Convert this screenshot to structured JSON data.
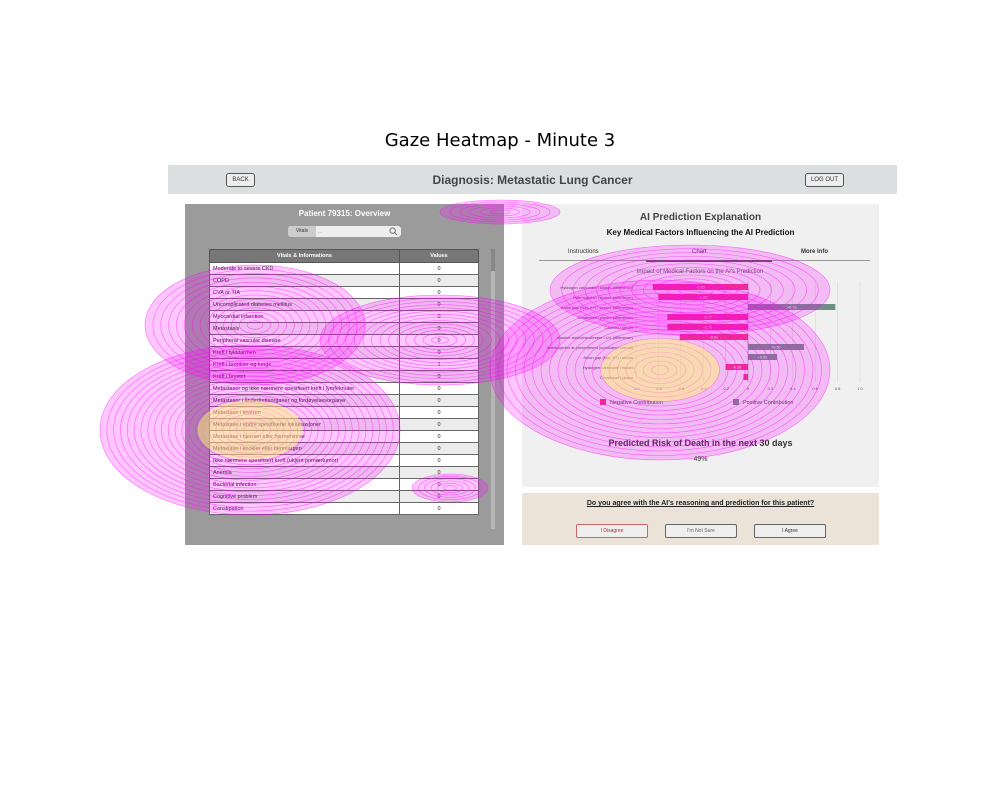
{
  "figure_title": "Gaze Heatmap - Minute 3",
  "header": {
    "back_label": "BACK",
    "title": "Diagnosis: Metastatic Lung Cancer",
    "logout_label": "LOG OUT"
  },
  "left_panel": {
    "title": "Patient 79315: Overview",
    "search_tab": "Vitals",
    "search_placeholder": "...",
    "table": {
      "headers": [
        "Vitals & Informations",
        "Values"
      ],
      "rows": [
        [
          "Moderate to severe CKD",
          "0"
        ],
        [
          "COPD",
          "0"
        ],
        [
          "CVA or TIA",
          "0"
        ],
        [
          "Uncomplicated diabetes mellitus",
          "0"
        ],
        [
          "Myocardial infarction",
          "0"
        ],
        [
          "Metastasis",
          "0"
        ],
        [
          "Peripheral vascular disease",
          "0"
        ],
        [
          "Kreft i tykktarmen",
          "0"
        ],
        [
          "Kreft i bronkier og lunge",
          "1"
        ],
        [
          "Kreft i brystet",
          "0"
        ],
        [
          "Metastaser og ikke nærmere spesifisert kreft i lymfeknuter",
          "0"
        ],
        [
          "Metastaser i åndedrettsorganer og fordøyelsesorganer",
          "0"
        ],
        [
          "Metastase i leveren",
          "0"
        ],
        [
          "Metastase i andre spesifiserte lokalisasjoner",
          "0"
        ],
        [
          "Metastase i hjernen eller hjernehinner",
          "0"
        ],
        [
          "Metastase i knokler eller benmargen",
          "0"
        ],
        [
          "Ikke nærmere spesifisert kreft (ukjent primærtumor)",
          "0"
        ],
        [
          "Anemia",
          "0"
        ],
        [
          "Bacterial infection",
          "0"
        ],
        [
          "Cognitive problem",
          "0"
        ],
        [
          "Constipation",
          "0"
        ]
      ]
    }
  },
  "right_panel": {
    "title": "AI Prediction Explanation",
    "subtitle": "Key Medical Factors Influencing the AI Prediction",
    "tabs": [
      "Instructions",
      "Chart",
      "More Info"
    ],
    "risk_title": "Predicted Risk of Death in the next 30 days",
    "risk_value": "49%"
  },
  "chart_data": {
    "type": "bar",
    "orientation": "horizontal",
    "title": "Impact of Medical Factors on the AI's Prediction",
    "categories": [
      "Hydrogen carbonate i blodet, (difference)",
      "Haemoglobin i blodet, (difference)",
      "Anion gap (Na), K+) i serum, (difference)",
      "Creatinium i plasm, (difference)",
      "Calcium i serum",
      "Alanine aminotransferase i U/L (difference)",
      "Haemoglobin at presentment (cumulated overall)",
      "Anion gap (Na), K+) i serum",
      "Hydrogen carbonate i blodet",
      "Creatinium i plasm"
    ],
    "values": [
      -0.85,
      -0.8,
      0.78,
      -0.72,
      -0.72,
      -0.61,
      0.5,
      0.26,
      -0.2,
      -0.04
    ],
    "value_labels": [
      "-0.85",
      "-0.80",
      "+0.78",
      "-0.72",
      "-0.72",
      "-0.61",
      "+0.50",
      "+0.26",
      "-0.20",
      ""
    ],
    "xlim": [
      -1.0,
      1.0
    ],
    "xticks": [
      "-1.0",
      "-0.8",
      "-0.6",
      "-0.4",
      "-0.2",
      "0",
      "0.2",
      "0.4",
      "0.6",
      "0.8",
      "1.0"
    ],
    "legend": [
      "Negative Contribution",
      "Positive Contribution"
    ],
    "colors": {
      "negative": "#e8367a",
      "positive": "#6e8f84"
    },
    "grid": true
  },
  "agreement": {
    "question": "Do you agree with the AI's reasoning and prediction for this patient?",
    "disagree": "I Disagree",
    "not_sure": "I'm Not Sure",
    "agree": "I Agree"
  },
  "heatmap_colors": {
    "outer": "#ff00ff",
    "inner": "#ffff66"
  }
}
